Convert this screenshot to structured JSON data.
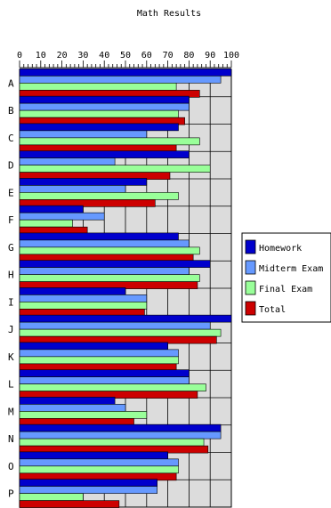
{
  "chart_data": {
    "type": "bar",
    "orientation": "horizontal",
    "title": "Math Results",
    "xlabel": "",
    "ylabel": "",
    "xlim": [
      0,
      100
    ],
    "ticks": [
      "0",
      "10",
      "20",
      "30",
      "40",
      "50",
      "60",
      "70",
      "80",
      "90",
      "100"
    ],
    "grid": true,
    "legend_position": "right",
    "categories": [
      "A",
      "B",
      "C",
      "D",
      "E",
      "F",
      "G",
      "H",
      "I",
      "J",
      "K",
      "L",
      "M",
      "N",
      "O",
      "P"
    ],
    "series": [
      {
        "name": "Homework",
        "color": "#0000cc",
        "values": [
          100,
          80,
          75,
          80,
          60,
          30,
          75,
          90,
          50,
          100,
          70,
          80,
          45,
          95,
          70,
          65
        ]
      },
      {
        "name": "Midterm Exam",
        "color": "#6699ff",
        "values": [
          95,
          80,
          60,
          45,
          50,
          40,
          80,
          80,
          60,
          90,
          75,
          80,
          50,
          95,
          75,
          65
        ]
      },
      {
        "name": "Final Exam",
        "color": "#99ff99",
        "values": [
          74,
          75,
          85,
          90,
          75,
          25,
          85,
          85,
          60,
          95,
          75,
          88,
          60,
          87,
          75,
          30
        ]
      },
      {
        "name": "Total",
        "color": "#cc0000",
        "values": [
          85,
          78,
          74,
          71,
          64,
          32,
          82,
          84,
          59,
          93,
          74,
          84,
          54,
          89,
          74,
          47
        ]
      }
    ]
  }
}
